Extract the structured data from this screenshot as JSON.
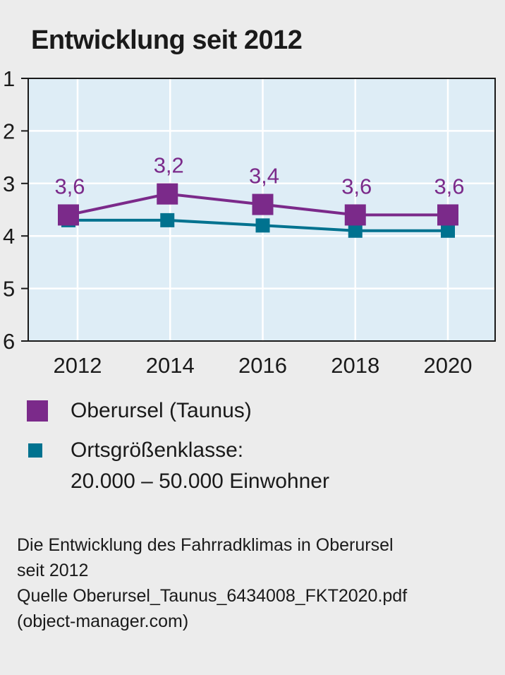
{
  "chart_data": {
    "type": "line",
    "title": "Entwicklung seit 2012",
    "x": [
      2012,
      2014,
      2016,
      2018,
      2020
    ],
    "x_tick_labels": [
      "2012",
      "2014",
      "2016",
      "2018",
      "2020"
    ],
    "y_tick_labels": [
      "1",
      "2",
      "3",
      "4",
      "5",
      "6"
    ],
    "ylim": [
      1,
      6
    ],
    "y_inverted": true,
    "grid": true,
    "series": [
      {
        "name": "Oberursel (Taunus)",
        "color": "#7b2a8a",
        "values": [
          3.6,
          3.2,
          3.4,
          3.6,
          3.6
        ],
        "data_labels": [
          "3,6",
          "3,2",
          "3,4",
          "3,6",
          "3,6"
        ]
      },
      {
        "name": "Ortsgrößenklasse: 20.000 – 50.000 Einwohner",
        "color": "#00728f",
        "values": [
          3.7,
          3.7,
          3.8,
          3.9,
          3.9
        ]
      }
    ]
  },
  "legend": {
    "items": [
      {
        "lines": [
          "Oberursel (Taunus)"
        ],
        "color": "#7b2a8a"
      },
      {
        "lines": [
          "Ortsgrößenklasse:",
          "20.000 – 50.000 Einwohner"
        ],
        "color": "#00728f"
      }
    ]
  },
  "caption": {
    "lines": [
      "Die Entwicklung des Fahrradklimas in Oberursel",
      "seit 2012",
      "Quelle Oberursel_Taunus_6434008_FKT2020.pdf",
      "(object-manager.com)"
    ]
  }
}
